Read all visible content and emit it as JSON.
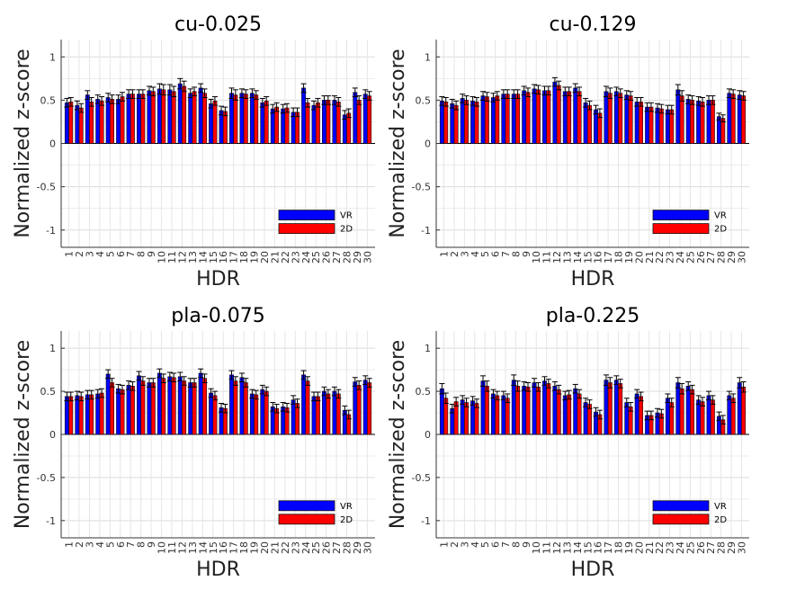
{
  "chart_data": [
    {
      "type": "bar",
      "title": "cu-0.025",
      "xlabel": "HDR",
      "ylabel": "Normalized z-score",
      "categories": [
        "1",
        "2",
        "3",
        "4",
        "5",
        "6",
        "7",
        "8",
        "9",
        "10",
        "11",
        "12",
        "13",
        "14",
        "15",
        "16",
        "17",
        "18",
        "19",
        "20",
        "21",
        "22",
        "23",
        "24",
        "25",
        "26",
        "27",
        "28",
        "29",
        "30"
      ],
      "yticks": [
        "-1",
        "-0.5",
        "0",
        "0.5",
        "1"
      ],
      "ylim": [
        -1.2,
        1.2
      ],
      "grid": true,
      "legend_position": "lower-right",
      "series": [
        {
          "name": "VR",
          "color": "#0000ff",
          "values": [
            0.47,
            0.44,
            0.56,
            0.51,
            0.53,
            0.51,
            0.57,
            0.57,
            0.61,
            0.63,
            0.62,
            0.69,
            0.58,
            0.64,
            0.46,
            0.38,
            0.58,
            0.58,
            0.58,
            0.47,
            0.4,
            0.4,
            0.36,
            0.64,
            0.44,
            0.5,
            0.5,
            0.33,
            0.59,
            0.57
          ],
          "errors": [
            0.05,
            0.05,
            0.05,
            0.05,
            0.05,
            0.05,
            0.05,
            0.05,
            0.05,
            0.06,
            0.06,
            0.06,
            0.05,
            0.05,
            0.05,
            0.05,
            0.06,
            0.05,
            0.05,
            0.05,
            0.05,
            0.05,
            0.05,
            0.05,
            0.05,
            0.05,
            0.05,
            0.05,
            0.05,
            0.05
          ]
        },
        {
          "name": "2D",
          "color": "#ff0000",
          "values": [
            0.48,
            0.41,
            0.48,
            0.49,
            0.51,
            0.54,
            0.57,
            0.57,
            0.6,
            0.62,
            0.6,
            0.66,
            0.6,
            0.58,
            0.49,
            0.37,
            0.56,
            0.57,
            0.56,
            0.49,
            0.42,
            0.41,
            0.36,
            0.47,
            0.47,
            0.5,
            0.48,
            0.35,
            0.5,
            0.55
          ],
          "errors": [
            0.05,
            0.05,
            0.05,
            0.05,
            0.05,
            0.05,
            0.05,
            0.05,
            0.05,
            0.06,
            0.06,
            0.06,
            0.05,
            0.05,
            0.05,
            0.05,
            0.06,
            0.05,
            0.05,
            0.05,
            0.05,
            0.05,
            0.05,
            0.05,
            0.05,
            0.05,
            0.05,
            0.05,
            0.05,
            0.05
          ]
        }
      ]
    },
    {
      "type": "bar",
      "title": "cu-0.129",
      "xlabel": "HDR",
      "ylabel": "Normalized z-score",
      "categories": [
        "1",
        "2",
        "3",
        "4",
        "5",
        "6",
        "7",
        "8",
        "9",
        "10",
        "11",
        "12",
        "13",
        "14",
        "15",
        "16",
        "17",
        "18",
        "19",
        "20",
        "21",
        "22",
        "23",
        "24",
        "25",
        "26",
        "27",
        "28",
        "29",
        "30"
      ],
      "yticks": [
        "-1",
        "-0.5",
        "0",
        "0.5",
        "1"
      ],
      "ylim": [
        -1.2,
        1.2
      ],
      "grid": true,
      "legend_position": "lower-right",
      "series": [
        {
          "name": "VR",
          "color": "#0000ff",
          "values": [
            0.49,
            0.46,
            0.52,
            0.49,
            0.55,
            0.53,
            0.57,
            0.57,
            0.61,
            0.63,
            0.61,
            0.71,
            0.6,
            0.64,
            0.47,
            0.39,
            0.6,
            0.6,
            0.56,
            0.48,
            0.42,
            0.41,
            0.39,
            0.62,
            0.51,
            0.49,
            0.5,
            0.31,
            0.58,
            0.56
          ],
          "errors": [
            0.05,
            0.05,
            0.05,
            0.05,
            0.05,
            0.05,
            0.05,
            0.05,
            0.05,
            0.05,
            0.05,
            0.05,
            0.05,
            0.05,
            0.05,
            0.05,
            0.06,
            0.05,
            0.05,
            0.05,
            0.05,
            0.05,
            0.05,
            0.06,
            0.05,
            0.05,
            0.05,
            0.04,
            0.05,
            0.05
          ]
        },
        {
          "name": "2D",
          "color": "#ff0000",
          "values": [
            0.48,
            0.44,
            0.5,
            0.48,
            0.54,
            0.55,
            0.57,
            0.57,
            0.59,
            0.62,
            0.61,
            0.67,
            0.6,
            0.6,
            0.44,
            0.35,
            0.58,
            0.58,
            0.55,
            0.48,
            0.42,
            0.4,
            0.39,
            0.55,
            0.5,
            0.48,
            0.5,
            0.29,
            0.57,
            0.55
          ],
          "errors": [
            0.05,
            0.05,
            0.05,
            0.05,
            0.05,
            0.05,
            0.05,
            0.05,
            0.05,
            0.05,
            0.05,
            0.05,
            0.05,
            0.05,
            0.05,
            0.05,
            0.06,
            0.05,
            0.05,
            0.05,
            0.05,
            0.05,
            0.05,
            0.06,
            0.05,
            0.05,
            0.05,
            0.04,
            0.05,
            0.05
          ]
        }
      ]
    },
    {
      "type": "bar",
      "title": "pla-0.075",
      "xlabel": "HDR",
      "ylabel": "Normalized z-score",
      "categories": [
        "1",
        "2",
        "3",
        "4",
        "5",
        "6",
        "7",
        "8",
        "9",
        "10",
        "11",
        "12",
        "13",
        "14",
        "15",
        "16",
        "17",
        "18",
        "19",
        "20",
        "21",
        "22",
        "23",
        "24",
        "25",
        "26",
        "27",
        "28",
        "29",
        "30"
      ],
      "yticks": [
        "-1",
        "-0.5",
        "0",
        "0.5",
        "1"
      ],
      "ylim": [
        -1.2,
        1.2
      ],
      "grid": true,
      "legend_position": "lower-right",
      "series": [
        {
          "name": "VR",
          "color": "#0000ff",
          "values": [
            0.44,
            0.45,
            0.46,
            0.47,
            0.7,
            0.53,
            0.57,
            0.68,
            0.6,
            0.71,
            0.67,
            0.67,
            0.6,
            0.71,
            0.48,
            0.31,
            0.69,
            0.66,
            0.47,
            0.52,
            0.32,
            0.32,
            0.4,
            0.69,
            0.44,
            0.5,
            0.5,
            0.28,
            0.61,
            0.63
          ],
          "errors": [
            0.05,
            0.05,
            0.05,
            0.05,
            0.05,
            0.05,
            0.05,
            0.05,
            0.05,
            0.05,
            0.05,
            0.05,
            0.05,
            0.05,
            0.05,
            0.05,
            0.05,
            0.05,
            0.05,
            0.05,
            0.05,
            0.05,
            0.05,
            0.05,
            0.05,
            0.05,
            0.05,
            0.05,
            0.05,
            0.05
          ]
        },
        {
          "name": "2D",
          "color": "#ff0000",
          "values": [
            0.44,
            0.44,
            0.46,
            0.48,
            0.6,
            0.52,
            0.56,
            0.62,
            0.6,
            0.65,
            0.66,
            0.62,
            0.6,
            0.65,
            0.45,
            0.3,
            0.62,
            0.6,
            0.46,
            0.5,
            0.3,
            0.31,
            0.36,
            0.62,
            0.44,
            0.47,
            0.47,
            0.23,
            0.57,
            0.6
          ],
          "errors": [
            0.05,
            0.05,
            0.05,
            0.05,
            0.05,
            0.05,
            0.05,
            0.05,
            0.05,
            0.05,
            0.05,
            0.05,
            0.05,
            0.05,
            0.05,
            0.05,
            0.05,
            0.05,
            0.05,
            0.05,
            0.05,
            0.05,
            0.05,
            0.05,
            0.05,
            0.05,
            0.05,
            0.05,
            0.05,
            0.05
          ]
        }
      ]
    },
    {
      "type": "bar",
      "title": "pla-0.225",
      "xlabel": "HDR",
      "ylabel": "Normalized z-score",
      "categories": [
        "1",
        "2",
        "3",
        "4",
        "5",
        "6",
        "7",
        "8",
        "9",
        "10",
        "11",
        "12",
        "13",
        "14",
        "15",
        "16",
        "17",
        "18",
        "19",
        "20",
        "21",
        "22",
        "23",
        "24",
        "25",
        "26",
        "27",
        "28",
        "29",
        "30"
      ],
      "yticks": [
        "-1",
        "-0.5",
        "0",
        "0.5",
        "1"
      ],
      "ylim": [
        -1.2,
        1.2
      ],
      "grid": true,
      "legend_position": "lower-right",
      "series": [
        {
          "name": "VR",
          "color": "#0000ff",
          "values": [
            0.53,
            0.3,
            0.4,
            0.39,
            0.62,
            0.47,
            0.45,
            0.63,
            0.56,
            0.6,
            0.62,
            0.56,
            0.45,
            0.53,
            0.37,
            0.26,
            0.63,
            0.63,
            0.37,
            0.47,
            0.22,
            0.25,
            0.42,
            0.6,
            0.56,
            0.4,
            0.45,
            0.21,
            0.45,
            0.6
          ],
          "errors": [
            0.06,
            0.05,
            0.05,
            0.05,
            0.06,
            0.05,
            0.05,
            0.06,
            0.05,
            0.05,
            0.05,
            0.05,
            0.05,
            0.05,
            0.05,
            0.05,
            0.06,
            0.05,
            0.05,
            0.05,
            0.05,
            0.05,
            0.05,
            0.06,
            0.05,
            0.05,
            0.05,
            0.05,
            0.05,
            0.06
          ]
        },
        {
          "name": "2D",
          "color": "#ff0000",
          "values": [
            0.42,
            0.38,
            0.37,
            0.36,
            0.56,
            0.45,
            0.42,
            0.56,
            0.55,
            0.55,
            0.59,
            0.52,
            0.46,
            0.47,
            0.35,
            0.23,
            0.6,
            0.59,
            0.32,
            0.44,
            0.22,
            0.24,
            0.37,
            0.53,
            0.52,
            0.38,
            0.4,
            0.17,
            0.42,
            0.55
          ],
          "errors": [
            0.06,
            0.05,
            0.05,
            0.05,
            0.06,
            0.05,
            0.05,
            0.06,
            0.05,
            0.05,
            0.05,
            0.05,
            0.05,
            0.05,
            0.05,
            0.05,
            0.06,
            0.05,
            0.05,
            0.05,
            0.05,
            0.05,
            0.05,
            0.06,
            0.05,
            0.05,
            0.05,
            0.05,
            0.05,
            0.06
          ]
        }
      ]
    }
  ]
}
